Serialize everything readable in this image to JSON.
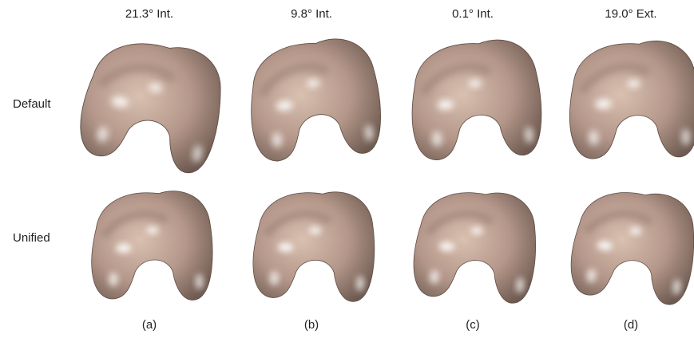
{
  "column_labels": [
    "21.3° Int.",
    "9.8° Int.",
    "0.1° Int.",
    "19.0° Ext."
  ],
  "row_labels": [
    "Default",
    "Unified"
  ],
  "panel_labels": [
    "(a)",
    "(b)",
    "(c)",
    "(d)"
  ]
}
